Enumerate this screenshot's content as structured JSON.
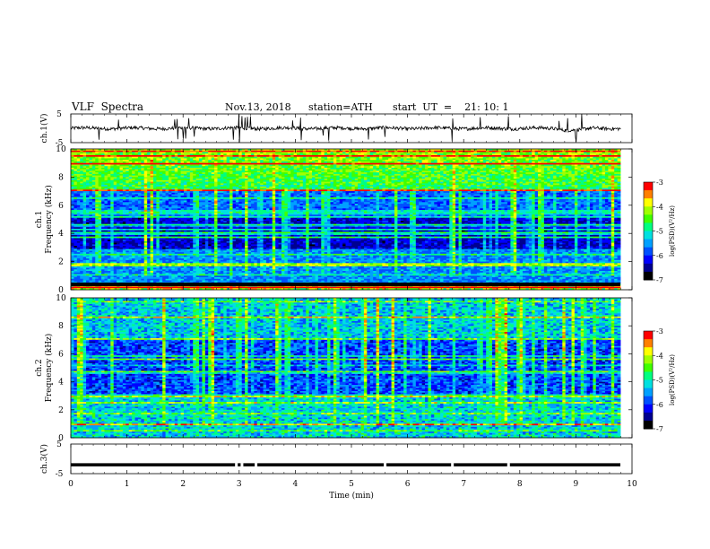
{
  "header": {
    "title": "VLF  Spectra",
    "date": "Nov.13, 2018",
    "station": "station=ATH",
    "start_ut": "start  UT  =    21: 10: 1"
  },
  "chart_data": [
    {
      "type": "line",
      "panel": "ch1-waveform",
      "ylabel": "ch.1(V)",
      "ylim": [
        -5,
        5
      ],
      "yticks": [
        "5",
        "-5"
      ],
      "xlim": [
        0,
        10
      ],
      "baseline": 0,
      "spike_times_min": [
        0.5,
        0.85,
        1.85,
        1.9,
        2.0,
        2.05,
        2.1,
        2.2,
        2.9,
        3.0,
        3.05,
        3.1,
        3.15,
        3.2,
        3.95,
        4.1,
        4.5,
        4.6,
        5.3,
        5.6,
        6.8,
        7.3,
        7.8,
        8.7,
        8.85,
        9.0,
        9.1
      ]
    },
    {
      "type": "heatmap",
      "panel": "ch1-spectrogram",
      "ylabel": "ch.1\nFrequency (kHz)",
      "ylim": [
        0,
        10
      ],
      "yticks": [
        "0",
        "2",
        "4",
        "6",
        "8",
        "10"
      ],
      "xlim": [
        0,
        9.8
      ],
      "colorbar": {
        "label": "log(PSD)(V²/Hz)",
        "range": [
          -7,
          -3
        ],
        "ticks": [
          "-3",
          "-4",
          "-5",
          "-6",
          "-7"
        ]
      }
    },
    {
      "type": "heatmap",
      "panel": "ch2-spectrogram",
      "ylabel": "ch.2\nFrequency (kHz)",
      "ylim": [
        0,
        10
      ],
      "yticks": [
        "0",
        "2",
        "4",
        "6",
        "8",
        "10"
      ],
      "xlim": [
        0,
        9.8
      ],
      "colorbar": {
        "label": "log(PSD)(V²/Hz)",
        "range": [
          -7,
          -3
        ],
        "ticks": [
          "-3",
          "-4",
          "-5",
          "-6",
          "-7"
        ]
      }
    },
    {
      "type": "line",
      "panel": "ch3-waveform",
      "ylabel": "ch.3(V)",
      "ylim": [
        -5,
        5
      ],
      "yticks": [
        "5",
        "-5"
      ],
      "xlim": [
        0,
        10
      ],
      "value": -2,
      "gap_times_min": [
        2.95,
        3.05,
        3.3,
        5.6,
        6.8,
        7.8
      ],
      "xlabel": "Time  (min)",
      "xticks": [
        "0",
        "1",
        "2",
        "3",
        "4",
        "5",
        "6",
        "7",
        "8",
        "9",
        "10"
      ]
    }
  ],
  "colors": {
    "colormap": [
      "#000000",
      "#000090",
      "#0000ff",
      "#0050ff",
      "#00a0ff",
      "#00e0e0",
      "#00ff80",
      "#40ff00",
      "#a0ff00",
      "#ffff00",
      "#ff8000",
      "#ff0000",
      "#ffd0d0"
    ]
  }
}
